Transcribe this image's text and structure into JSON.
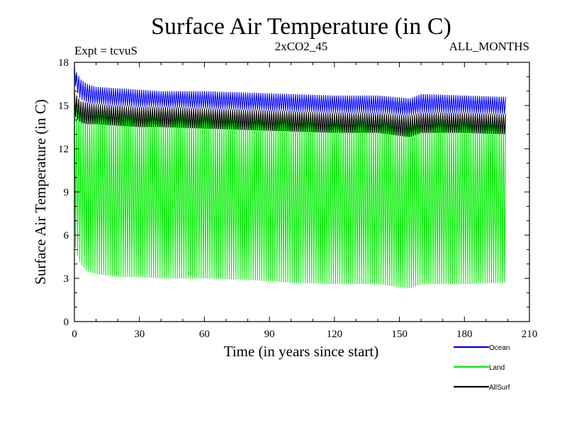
{
  "header": {
    "experiment": "Expt = tcvuS",
    "scenario": "2xCO2_45",
    "period": "ALL_MONTHS"
  },
  "chart_data": {
    "type": "line",
    "title": "Surface Air Temperature (in C)",
    "xlabel": "Time (in years since start)",
    "ylabel": "Surface Air Temperature (in C)",
    "xlim": [
      0,
      210
    ],
    "ylim": [
      0,
      18
    ],
    "x_ticks": [
      0,
      30,
      60,
      90,
      120,
      150,
      180,
      210
    ],
    "y_ticks": [
      0,
      3,
      6,
      9,
      12,
      15,
      18
    ],
    "x_tick_labels": [
      "0",
      "30",
      "60",
      "90",
      "120",
      "150",
      "180",
      "210"
    ],
    "y_tick_labels": [
      "0",
      "3",
      "6",
      "9",
      "12",
      "15",
      "18"
    ],
    "grid": false,
    "legend_position": "bottom-right, outside plot",
    "time_range": [
      0,
      199
    ],
    "sample_step": 0.25,
    "series": [
      {
        "name": "Ocean",
        "color": "#0000ff",
        "envelope": {
          "x": [
            0,
            1,
            3,
            6,
            10,
            20,
            30,
            40,
            60,
            80,
            100,
            120,
            140,
            155,
            160,
            180,
            199
          ],
          "low": [
            16.7,
            16.0,
            15.4,
            15.2,
            15.1,
            15.0,
            14.9,
            14.9,
            14.8,
            14.7,
            14.6,
            14.5,
            14.5,
            14.3,
            14.5,
            14.5,
            14.4
          ],
          "high": [
            17.8,
            17.3,
            16.8,
            16.5,
            16.3,
            16.2,
            16.1,
            16.0,
            16.0,
            15.9,
            15.8,
            15.7,
            15.7,
            15.5,
            15.8,
            15.7,
            15.6
          ]
        }
      },
      {
        "name": "Land",
        "color": "#00ee00",
        "envelope": {
          "x": [
            0,
            1,
            3,
            6,
            10,
            20,
            30,
            40,
            60,
            80,
            100,
            120,
            140,
            155,
            160,
            180,
            199
          ],
          "low": [
            5.5,
            4.8,
            4.0,
            3.5,
            3.3,
            3.1,
            3.1,
            3.0,
            3.0,
            2.9,
            2.7,
            2.6,
            2.6,
            2.3,
            2.6,
            2.6,
            2.7
          ],
          "high": [
            15.6,
            15.3,
            15.0,
            14.9,
            14.8,
            14.8,
            14.7,
            14.7,
            14.6,
            14.5,
            14.4,
            14.3,
            14.3,
            14.0,
            14.3,
            14.3,
            14.2
          ]
        }
      },
      {
        "name": "AllSurf",
        "color": "#000000",
        "envelope": {
          "x": [
            0,
            1,
            3,
            6,
            10,
            20,
            30,
            40,
            60,
            80,
            100,
            120,
            140,
            155,
            160,
            180,
            199
          ],
          "low": [
            14.3,
            14.1,
            13.8,
            13.7,
            13.7,
            13.6,
            13.5,
            13.5,
            13.4,
            13.3,
            13.2,
            13.1,
            13.1,
            12.8,
            13.1,
            13.1,
            13.0
          ],
          "high": [
            16.1,
            15.7,
            15.3,
            15.2,
            15.1,
            15.0,
            14.9,
            14.9,
            14.8,
            14.7,
            14.6,
            14.5,
            14.5,
            14.3,
            14.5,
            14.5,
            14.4
          ]
        }
      }
    ]
  }
}
